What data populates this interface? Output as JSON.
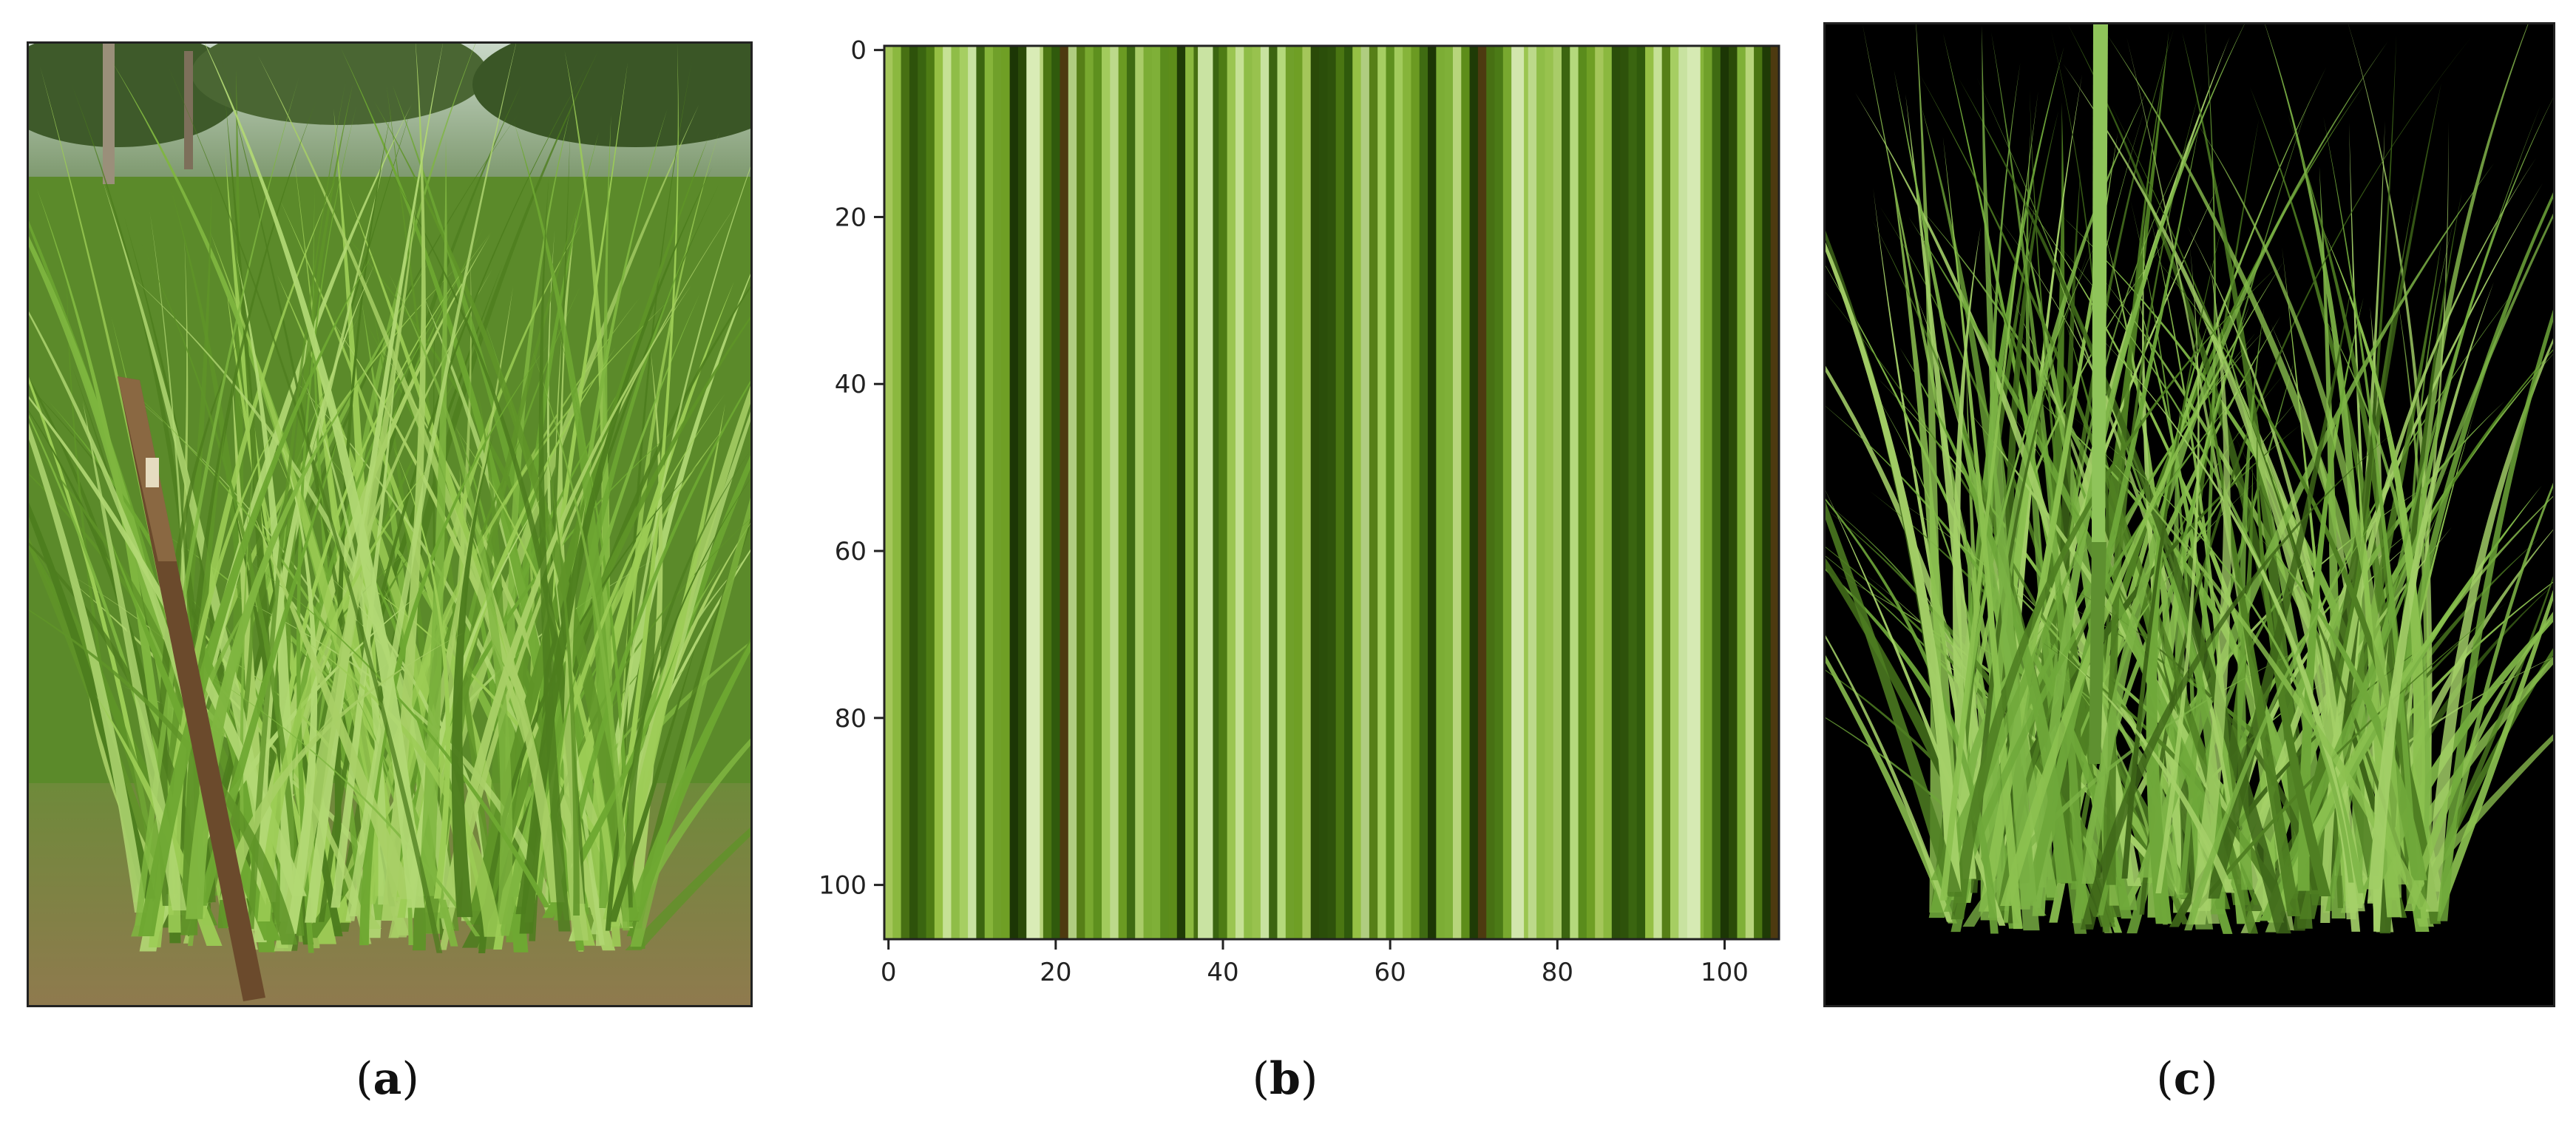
{
  "panels": {
    "a": {
      "caption_letter": "a",
      "description": "photo of tall green grass clump with a wooden stake"
    },
    "b": {
      "caption_letter": "b"
    },
    "c": {
      "caption_letter": "c",
      "description": "segmented grass on black background"
    }
  },
  "chart_data": {
    "type": "heatmap",
    "x_ticks": [
      0,
      20,
      40,
      60,
      80,
      100
    ],
    "y_ticks": [
      0,
      20,
      40,
      60,
      80,
      100
    ],
    "xlim": [
      0,
      107
    ],
    "ylim": [
      107,
      0
    ],
    "stripe_colors": [
      "#a4c65a",
      "#6b9a22",
      "#95c044",
      "#5d8d1a",
      "#86b43a",
      "#4e7c14",
      "#b7d57b",
      "#3c6510",
      "#78a82f",
      "#2b4e0a",
      "#a9cc68",
      "#567f17",
      "#8bb83f",
      "#3f6b12",
      "#c6e195",
      "#1f3b06",
      "#70a02a",
      "#9bc550",
      "#4a7612",
      "#b4d97c",
      "#5e901e",
      "#2e520b",
      "#7cad35",
      "#a6ce62",
      "#477013",
      "#1c3605",
      "#8fbd47",
      "#4d3a10",
      "#6f9f25",
      "#bcd98a",
      "#305a0c",
      "#5a8c1c",
      "#a2cb5c",
      "#3a6510",
      "#7fb038",
      "#c8e2a0",
      "#4b7a16",
      "#2a4a08",
      "#98c24e",
      "#b0cd80"
    ],
    "bright_stripes": [
      {
        "x": 17.0,
        "w": 1.6,
        "color": "#d9ecb6"
      },
      {
        "x": 37.5,
        "w": 1.8,
        "color": "#c9e3a2"
      },
      {
        "x": 75.0,
        "w": 1.5,
        "color": "#d2e6ad"
      },
      {
        "x": 96.0,
        "w": 1.6,
        "color": "#d6eab3"
      }
    ]
  }
}
